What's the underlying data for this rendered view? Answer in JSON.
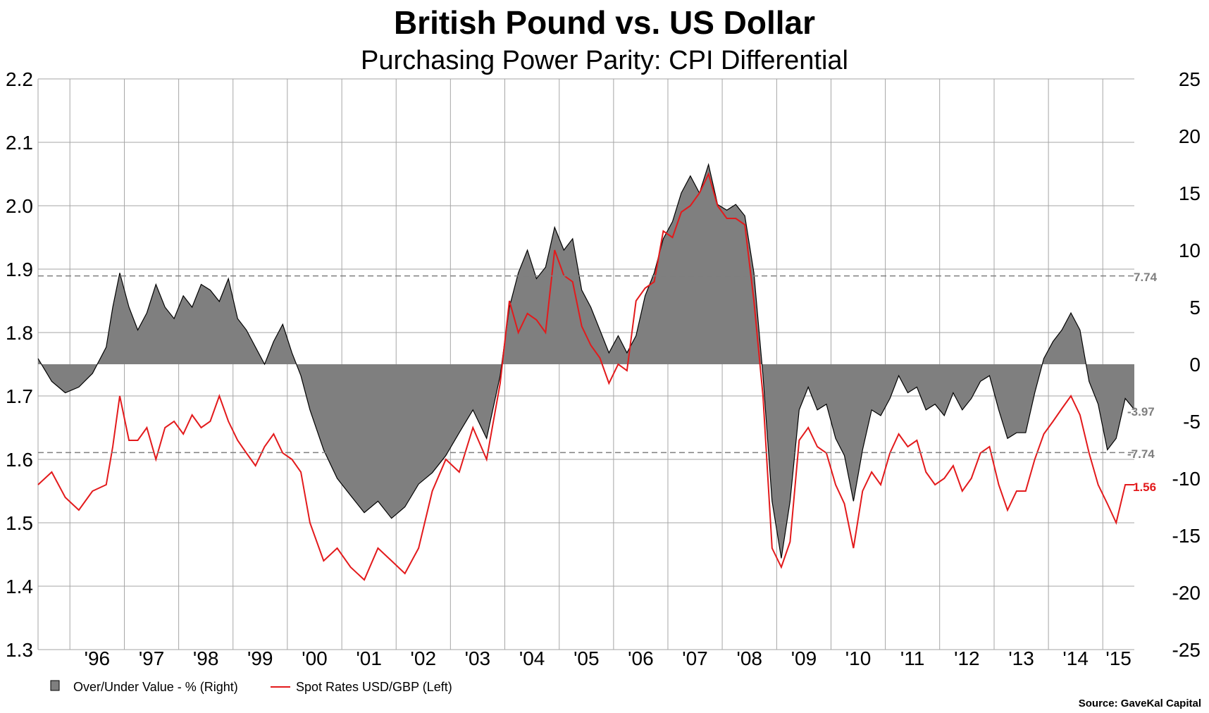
{
  "title": "British Pound vs. US Dollar",
  "subtitle": "Purchasing Power Parity: CPI Differential",
  "source": "Source: GaveKal Capital",
  "legend": {
    "over_under_label": "Over/Under Value - %  (Right)",
    "spot_label": "Spot Rates USD/GBP  (Left)"
  },
  "labels": {
    "upper_band": "7.74",
    "lower_band": "-7.74",
    "last_over_under": "-3.97",
    "last_spot": "1.56"
  },
  "colors": {
    "over_under_fill": "#7f7f7f",
    "over_under_line": "#000000",
    "spot_line": "#e31a1c",
    "grid": "#a6a6a6",
    "band": "#7f7f7f"
  },
  "chart_data": {
    "type": "area",
    "x_start": "1995-06-01",
    "x_end": "2015-08-01",
    "x_tick_labels": [
      "'96",
      "'97",
      "'98",
      "'99",
      "'00",
      "'01",
      "'02",
      "'03",
      "'04",
      "'05",
      "'06",
      "'07",
      "'08",
      "'09",
      "'10",
      "'11",
      "'12",
      "'13",
      "'14",
      "'15"
    ],
    "y_left": {
      "min": 1.3,
      "max": 2.2,
      "ticks": [
        "1.3",
        "1.4",
        "1.5",
        "1.6",
        "1.7",
        "1.8",
        "1.9",
        "2.0",
        "2.1",
        "2.2"
      ]
    },
    "y_right": {
      "min": -25,
      "max": 25,
      "ticks": [
        "-25",
        "-20",
        "-15",
        "-10",
        "-5",
        "0",
        "5",
        "10",
        "15",
        "20",
        "25"
      ]
    },
    "reference_lines": [
      7.74,
      -7.74
    ],
    "grid": true,
    "legend_position": "bottom-left",
    "series": [
      {
        "name": "Over/Under Value - %  (Right)",
        "axis": "right",
        "style": "area",
        "points": [
          [
            "1995-06-01",
            0.5
          ],
          [
            "1995-09-01",
            -1.5
          ],
          [
            "1995-12-01",
            -2.5
          ],
          [
            "1996-03-01",
            -2.0
          ],
          [
            "1996-06-01",
            -0.8
          ],
          [
            "1996-09-01",
            1.5
          ],
          [
            "1996-10-15",
            5.0
          ],
          [
            "1996-12-01",
            8.0
          ],
          [
            "1997-02-01",
            5.0
          ],
          [
            "1997-04-01",
            3.0
          ],
          [
            "1997-06-01",
            4.5
          ],
          [
            "1997-08-01",
            7.0
          ],
          [
            "1997-10-01",
            5.0
          ],
          [
            "1997-12-01",
            4.0
          ],
          [
            "1998-02-01",
            6.0
          ],
          [
            "1998-04-01",
            5.0
          ],
          [
            "1998-06-01",
            7.0
          ],
          [
            "1998-08-01",
            6.5
          ],
          [
            "1998-10-01",
            5.5
          ],
          [
            "1998-12-01",
            7.5
          ],
          [
            "1999-02-01",
            4.0
          ],
          [
            "1999-04-01",
            3.0
          ],
          [
            "1999-06-01",
            1.5
          ],
          [
            "1999-08-01",
            0.0
          ],
          [
            "1999-10-01",
            2.0
          ],
          [
            "1999-12-01",
            3.5
          ],
          [
            "2000-02-01",
            1.0
          ],
          [
            "2000-04-01",
            -1.0
          ],
          [
            "2000-06-01",
            -4.0
          ],
          [
            "2000-09-01",
            -7.5
          ],
          [
            "2000-12-01",
            -10.0
          ],
          [
            "2001-03-01",
            -11.5
          ],
          [
            "2001-06-01",
            -13.0
          ],
          [
            "2001-09-01",
            -12.0
          ],
          [
            "2001-12-01",
            -13.5
          ],
          [
            "2002-03-01",
            -12.5
          ],
          [
            "2002-06-01",
            -10.5
          ],
          [
            "2002-09-01",
            -9.5
          ],
          [
            "2002-12-01",
            -8.0
          ],
          [
            "2003-03-01",
            -6.0
          ],
          [
            "2003-06-01",
            -4.0
          ],
          [
            "2003-09-01",
            -6.5
          ],
          [
            "2003-12-01",
            -1.0
          ],
          [
            "2004-02-01",
            5.0
          ],
          [
            "2004-04-01",
            8.0
          ],
          [
            "2004-06-01",
            10.0
          ],
          [
            "2004-08-01",
            7.5
          ],
          [
            "2004-10-01",
            8.5
          ],
          [
            "2004-12-01",
            12.0
          ],
          [
            "2005-02-01",
            10.0
          ],
          [
            "2005-04-01",
            11.0
          ],
          [
            "2005-06-01",
            6.5
          ],
          [
            "2005-08-01",
            5.0
          ],
          [
            "2005-10-01",
            3.0
          ],
          [
            "2005-12-01",
            1.0
          ],
          [
            "2006-02-01",
            2.5
          ],
          [
            "2006-04-01",
            1.0
          ],
          [
            "2006-06-01",
            2.5
          ],
          [
            "2006-08-01",
            6.0
          ],
          [
            "2006-10-01",
            8.0
          ],
          [
            "2006-12-01",
            11.0
          ],
          [
            "2007-02-01",
            12.5
          ],
          [
            "2007-04-01",
            15.0
          ],
          [
            "2007-06-01",
            16.5
          ],
          [
            "2007-08-01",
            15.0
          ],
          [
            "2007-10-01",
            17.5
          ],
          [
            "2007-12-01",
            14.0
          ],
          [
            "2008-02-01",
            13.5
          ],
          [
            "2008-04-01",
            14.0
          ],
          [
            "2008-06-01",
            13.0
          ],
          [
            "2008-08-01",
            8.0
          ],
          [
            "2008-10-01",
            -1.0
          ],
          [
            "2008-12-01",
            -12.0
          ],
          [
            "2009-02-01",
            -17.0
          ],
          [
            "2009-04-01",
            -12.0
          ],
          [
            "2009-06-01",
            -4.0
          ],
          [
            "2009-08-01",
            -2.0
          ],
          [
            "2009-10-01",
            -4.0
          ],
          [
            "2009-12-01",
            -3.5
          ],
          [
            "2010-02-01",
            -6.5
          ],
          [
            "2010-04-01",
            -8.0
          ],
          [
            "2010-06-01",
            -12.0
          ],
          [
            "2010-08-01",
            -7.5
          ],
          [
            "2010-10-01",
            -4.0
          ],
          [
            "2010-12-01",
            -4.5
          ],
          [
            "2011-02-01",
            -3.0
          ],
          [
            "2011-04-01",
            -1.0
          ],
          [
            "2011-06-01",
            -2.5
          ],
          [
            "2011-08-01",
            -2.0
          ],
          [
            "2011-10-01",
            -4.0
          ],
          [
            "2011-12-01",
            -3.5
          ],
          [
            "2012-02-01",
            -4.5
          ],
          [
            "2012-04-01",
            -2.5
          ],
          [
            "2012-06-01",
            -4.0
          ],
          [
            "2012-08-01",
            -3.0
          ],
          [
            "2012-10-01",
            -1.5
          ],
          [
            "2012-12-01",
            -1.0
          ],
          [
            "2013-02-01",
            -4.0
          ],
          [
            "2013-04-01",
            -6.5
          ],
          [
            "2013-06-01",
            -6.0
          ],
          [
            "2013-08-01",
            -6.0
          ],
          [
            "2013-10-01",
            -2.5
          ],
          [
            "2013-12-01",
            0.5
          ],
          [
            "2014-02-01",
            2.0
          ],
          [
            "2014-04-01",
            3.0
          ],
          [
            "2014-06-01",
            4.5
          ],
          [
            "2014-08-01",
            3.0
          ],
          [
            "2014-10-01",
            -1.5
          ],
          [
            "2014-12-01",
            -3.5
          ],
          [
            "2015-02-01",
            -7.5
          ],
          [
            "2015-04-01",
            -6.5
          ],
          [
            "2015-06-01",
            -3.0
          ],
          [
            "2015-08-01",
            -3.97
          ]
        ]
      },
      {
        "name": "Spot Rates USD/GBP  (Left)",
        "axis": "left",
        "style": "line",
        "points": [
          [
            "1995-06-01",
            1.56
          ],
          [
            "1995-09-01",
            1.58
          ],
          [
            "1995-12-01",
            1.54
          ],
          [
            "1996-03-01",
            1.52
          ],
          [
            "1996-06-01",
            1.55
          ],
          [
            "1996-09-01",
            1.56
          ],
          [
            "1996-10-15",
            1.62
          ],
          [
            "1996-12-01",
            1.7
          ],
          [
            "1997-02-01",
            1.63
          ],
          [
            "1997-04-01",
            1.63
          ],
          [
            "1997-06-01",
            1.65
          ],
          [
            "1997-08-01",
            1.6
          ],
          [
            "1997-10-01",
            1.65
          ],
          [
            "1997-12-01",
            1.66
          ],
          [
            "1998-02-01",
            1.64
          ],
          [
            "1998-04-01",
            1.67
          ],
          [
            "1998-06-01",
            1.65
          ],
          [
            "1998-08-01",
            1.66
          ],
          [
            "1998-10-01",
            1.7
          ],
          [
            "1998-12-01",
            1.66
          ],
          [
            "1999-02-01",
            1.63
          ],
          [
            "1999-04-01",
            1.61
          ],
          [
            "1999-06-01",
            1.59
          ],
          [
            "1999-08-01",
            1.62
          ],
          [
            "1999-10-01",
            1.64
          ],
          [
            "1999-12-01",
            1.61
          ],
          [
            "2000-02-01",
            1.6
          ],
          [
            "2000-04-01",
            1.58
          ],
          [
            "2000-06-01",
            1.5
          ],
          [
            "2000-09-01",
            1.44
          ],
          [
            "2000-12-01",
            1.46
          ],
          [
            "2001-03-01",
            1.43
          ],
          [
            "2001-06-01",
            1.41
          ],
          [
            "2001-09-01",
            1.46
          ],
          [
            "2001-12-01",
            1.44
          ],
          [
            "2002-03-01",
            1.42
          ],
          [
            "2002-06-01",
            1.46
          ],
          [
            "2002-09-01",
            1.55
          ],
          [
            "2002-12-01",
            1.6
          ],
          [
            "2003-03-01",
            1.58
          ],
          [
            "2003-06-01",
            1.65
          ],
          [
            "2003-09-01",
            1.6
          ],
          [
            "2003-12-01",
            1.72
          ],
          [
            "2004-02-01",
            1.85
          ],
          [
            "2004-04-01",
            1.8
          ],
          [
            "2004-06-01",
            1.83
          ],
          [
            "2004-08-01",
            1.82
          ],
          [
            "2004-10-01",
            1.8
          ],
          [
            "2004-12-01",
            1.93
          ],
          [
            "2005-02-01",
            1.89
          ],
          [
            "2005-04-01",
            1.88
          ],
          [
            "2005-06-01",
            1.81
          ],
          [
            "2005-08-01",
            1.78
          ],
          [
            "2005-10-01",
            1.76
          ],
          [
            "2005-12-01",
            1.72
          ],
          [
            "2006-02-01",
            1.75
          ],
          [
            "2006-04-01",
            1.74
          ],
          [
            "2006-06-01",
            1.85
          ],
          [
            "2006-08-01",
            1.87
          ],
          [
            "2006-10-01",
            1.88
          ],
          [
            "2006-12-01",
            1.96
          ],
          [
            "2007-02-01",
            1.95
          ],
          [
            "2007-04-01",
            1.99
          ],
          [
            "2007-06-01",
            2.0
          ],
          [
            "2007-08-01",
            2.02
          ],
          [
            "2007-10-01",
            2.05
          ],
          [
            "2007-12-01",
            2.0
          ],
          [
            "2008-02-01",
            1.98
          ],
          [
            "2008-04-01",
            1.98
          ],
          [
            "2008-06-01",
            1.97
          ],
          [
            "2008-08-01",
            1.85
          ],
          [
            "2008-10-01",
            1.7
          ],
          [
            "2008-12-01",
            1.46
          ],
          [
            "2009-02-01",
            1.43
          ],
          [
            "2009-04-01",
            1.47
          ],
          [
            "2009-06-01",
            1.63
          ],
          [
            "2009-08-01",
            1.65
          ],
          [
            "2009-10-01",
            1.62
          ],
          [
            "2009-12-01",
            1.61
          ],
          [
            "2010-02-01",
            1.56
          ],
          [
            "2010-04-01",
            1.53
          ],
          [
            "2010-06-01",
            1.46
          ],
          [
            "2010-08-01",
            1.55
          ],
          [
            "2010-10-01",
            1.58
          ],
          [
            "2010-12-01",
            1.56
          ],
          [
            "2011-02-01",
            1.61
          ],
          [
            "2011-04-01",
            1.64
          ],
          [
            "2011-06-01",
            1.62
          ],
          [
            "2011-08-01",
            1.63
          ],
          [
            "2011-10-01",
            1.58
          ],
          [
            "2011-12-01",
            1.56
          ],
          [
            "2012-02-01",
            1.57
          ],
          [
            "2012-04-01",
            1.59
          ],
          [
            "2012-06-01",
            1.55
          ],
          [
            "2012-08-01",
            1.57
          ],
          [
            "2012-10-01",
            1.61
          ],
          [
            "2012-12-01",
            1.62
          ],
          [
            "2013-02-01",
            1.56
          ],
          [
            "2013-04-01",
            1.52
          ],
          [
            "2013-06-01",
            1.55
          ],
          [
            "2013-08-01",
            1.55
          ],
          [
            "2013-10-01",
            1.6
          ],
          [
            "2013-12-01",
            1.64
          ],
          [
            "2014-02-01",
            1.66
          ],
          [
            "2014-04-01",
            1.68
          ],
          [
            "2014-06-01",
            1.7
          ],
          [
            "2014-08-01",
            1.67
          ],
          [
            "2014-10-01",
            1.61
          ],
          [
            "2014-12-01",
            1.56
          ],
          [
            "2015-02-01",
            1.53
          ],
          [
            "2015-04-01",
            1.5
          ],
          [
            "2015-06-01",
            1.56
          ],
          [
            "2015-08-01",
            1.56
          ]
        ]
      }
    ]
  }
}
